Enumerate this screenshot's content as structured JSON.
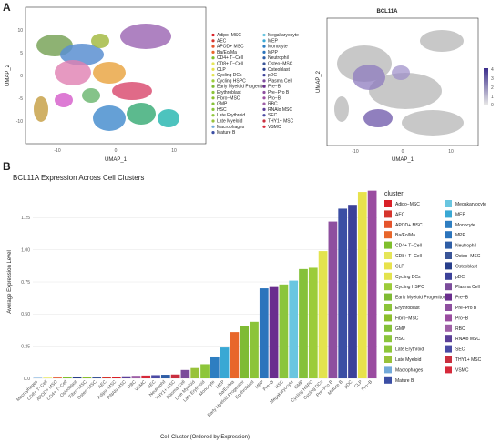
{
  "panel_a": {
    "letter": "A",
    "umap_left": {
      "xlabel": "UMAP_1",
      "ylabel": "UMAP_2",
      "x_ticks": [
        "-10",
        "0",
        "10"
      ],
      "y_ticks": [
        "10",
        "5",
        "0",
        "-5",
        "-10"
      ],
      "legend_col1": [
        "Adipo−MSC",
        "AEC",
        "APOD+ MSC",
        "Ba/Eo/Ma",
        "CD4+ T−Cell",
        "CD8+ T−Cell",
        "CLP",
        "Cycling DCs",
        "Cycling HSPC",
        "Early Myeloid Progenitor",
        "Erythroblast",
        "Fibro−MSC",
        "GMP",
        "HSC",
        "Late Erythroid",
        "Late Myeloid",
        "Macrophages",
        "Mature B"
      ],
      "legend_col2": [
        "Megakaryocyte",
        "MEP",
        "Monocyte",
        "MPP",
        "Neutrophil",
        "Osteo−MSC",
        "Osteoblast",
        "pDC",
        "Plasma Cell",
        "Pre−B",
        "Pre−Pro B",
        "Pro−B",
        "RBC",
        "RNAlo MSC",
        "SEC",
        "THY1+ MSC",
        "VSMC"
      ]
    },
    "umap_right": {
      "title": "BCL11A",
      "xlabel": "UMAP_1",
      "ylabel": "UMAP_2",
      "x_ticks": [
        "-10",
        "0",
        "10"
      ],
      "y_ticks": [
        "10",
        "5",
        "0",
        "-5",
        "-10"
      ],
      "scale_ticks": [
        "4",
        "3",
        "2",
        "1",
        "0"
      ]
    }
  },
  "panel_b": {
    "letter": "B"
  },
  "chart_data": {
    "type": "bar",
    "title": "BCL11A Expression Across Cell Clusters",
    "xlabel": "Cell Cluster (Ordered by Expression)",
    "ylabel": "Average Expression Level",
    "ylim": [
      0,
      1.5
    ],
    "y_ticks": [
      "0.0",
      "0.25",
      "0.50",
      "0.75",
      "1.00",
      "1.25"
    ],
    "y_tick_values": [
      0,
      0.25,
      0.5,
      0.75,
      1.0,
      1.25
    ],
    "legend_title": "cluster",
    "legend_position": "right",
    "categories": [
      "Macrophages",
      "CD8+ T−Cell",
      "APOD+ MSC",
      "CD4+ T−Cell",
      "Osteoblast",
      "Fibro−MSC",
      "Osteo−MSC",
      "AEC",
      "Adipo−MSC",
      "RNAlo MSC",
      "RBC",
      "VSMC",
      "SEC",
      "Neutrophil",
      "THY1+ MSC",
      "Plasma Cell",
      "Late Myeloid",
      "Late Erythroid",
      "Monocyte",
      "MEP",
      "Ba/Eo/Ma",
      "Early Myeloid Progenitor",
      "Erythroblast",
      "MPP",
      "Pre−B",
      "HSC",
      "Megakaryocyte",
      "GMP",
      "Cycling HSPC",
      "Cycling DCs",
      "Pre−Pro B",
      "Mature B",
      "pDC",
      "CLP",
      "Pro−B"
    ],
    "values": [
      0.004,
      0.005,
      0.006,
      0.007,
      0.008,
      0.009,
      0.01,
      0.012,
      0.014,
      0.016,
      0.02,
      0.022,
      0.025,
      0.028,
      0.03,
      0.065,
      0.08,
      0.11,
      0.17,
      0.24,
      0.36,
      0.41,
      0.44,
      0.7,
      0.71,
      0.73,
      0.76,
      0.85,
      0.86,
      0.99,
      1.22,
      1.32,
      1.35,
      1.45,
      1.46
    ],
    "colors": [
      "#72a9d9",
      "#e6e658",
      "#e5542c",
      "#7fbf2c",
      "#273e8b",
      "#8cbf2d",
      "#3a5598",
      "#d6342c",
      "#d92027",
      "#5b3f98",
      "#9e5fa6",
      "#d6293a",
      "#4a4aa4",
      "#2f5ea6",
      "#c92f3f",
      "#7b4c9b",
      "#98c23a",
      "#8dc63a",
      "#2e7ec1",
      "#39a8d4",
      "#e8662a",
      "#7fbb34",
      "#8cc43a",
      "#2b74bc",
      "#6a2e8e",
      "#8bc53c",
      "#6ac6e0",
      "#85c13a",
      "#9ccc3a",
      "#e3e34e",
      "#8e4f9f",
      "#3b4ea4",
      "#3c4199",
      "#e8e24c",
      "#9a4ca0"
    ],
    "legend_col1": [
      "Adipo−MSC",
      "AEC",
      "APOD+ MSC",
      "Ba/Eo/Ma",
      "CD4+ T−Cell",
      "CD8+ T−Cell",
      "CLP",
      "Cycling DCs",
      "Cycling HSPC",
      "Early Myeloid Progenitor",
      "Erythroblast",
      "Fibro−MSC",
      "GMP",
      "HSC",
      "Late Erythroid",
      "Late Myeloid",
      "Macrophages",
      "Mature B"
    ],
    "legend_col1_colors": [
      "#d92027",
      "#d6342c",
      "#e5542c",
      "#e8662a",
      "#7fbf2c",
      "#e6e658",
      "#e8e24c",
      "#e3e34e",
      "#9ccc3a",
      "#7fbb34",
      "#8cc43a",
      "#8cbf2d",
      "#85c13a",
      "#8bc53c",
      "#8dc63a",
      "#98c23a",
      "#72a9d9",
      "#3b4ea4"
    ],
    "legend_col2": [
      "Megakaryocyte",
      "MEP",
      "Monocyte",
      "MPP",
      "Neutrophil",
      "Osteo−MSC",
      "Osteoblast",
      "pDC",
      "Plasma Cell",
      "Pre−B",
      "Pre−Pro B",
      "Pro−B",
      "RBC",
      "RNAlo MSC",
      "SEC",
      "THY1+ MSC",
      "VSMC"
    ],
    "legend_col2_colors": [
      "#6ac6e0",
      "#39a8d4",
      "#2e7ec1",
      "#2b74bc",
      "#2f5ea6",
      "#3a5598",
      "#273e8b",
      "#3c4199",
      "#7b4c9b",
      "#6a2e8e",
      "#8e4f9f",
      "#9a4ca0",
      "#9e5fa6",
      "#5b3f98",
      "#4a4aa4",
      "#c92f3f",
      "#d6293a"
    ]
  }
}
